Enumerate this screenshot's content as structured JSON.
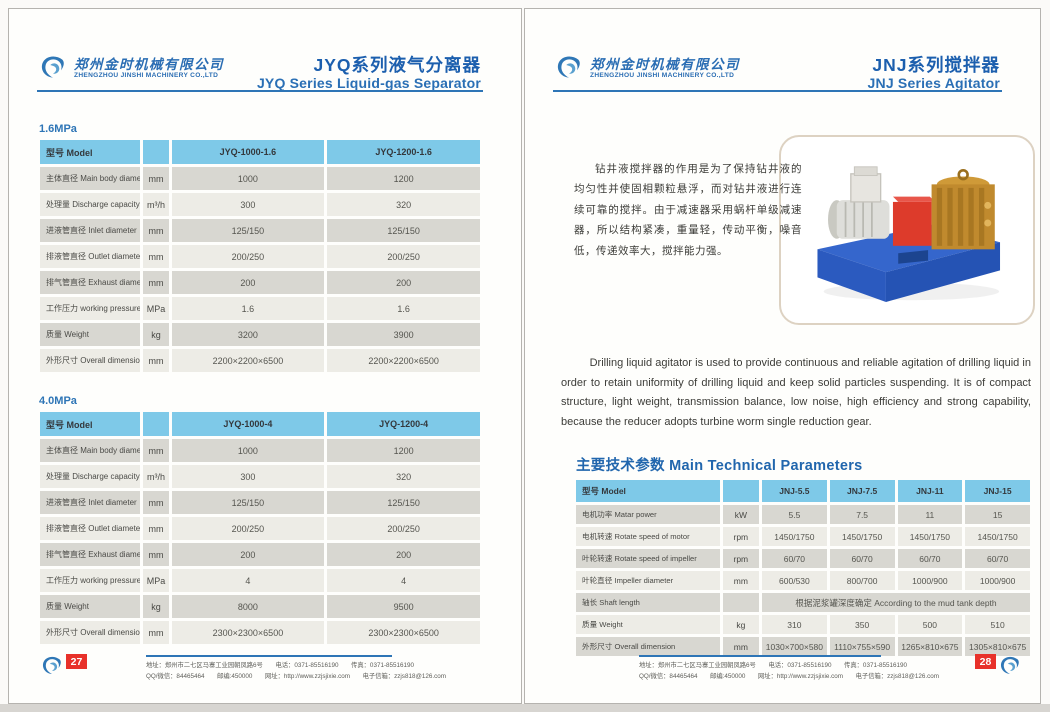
{
  "company": {
    "name_cn": "郑州金时机械有限公司",
    "name_en": "ZHENGZHOU JINSHI MACHINERY CO.,LTD"
  },
  "footer": {
    "line1": "地址：郑州市二七区马寨工业园朝凤路6号　　电话：0371-85516190　　传真：0371-85516190",
    "line2": "QQ/微信：84465464　　邮编:450000　　网址：http://www.zzjsjixie.com　　电子信箱：zzjs818@126.com"
  },
  "left_page": {
    "title_cn": "JYQ系列液气分离器",
    "title_en": "JYQ Series Liquid-gas Separator",
    "page_number": "27",
    "sections": [
      {
        "label": "1.6MPa",
        "table": {
          "header": [
            "型号 Model",
            "",
            "JYQ-1000-1.6",
            "JYQ-1200-1.6"
          ],
          "rows": [
            {
              "label": "主体直径 Main body diameter",
              "unit": "mm",
              "values": [
                "1000",
                "1200"
              ]
            },
            {
              "label": "处理量 Discharge capacity",
              "unit": "m³/h",
              "values": [
                "300",
                "320"
              ]
            },
            {
              "label": "进液管直径 Inlet diameter",
              "unit": "mm",
              "values": [
                "125/150",
                "125/150"
              ]
            },
            {
              "label": "排液管直径 Outlet diameter",
              "unit": "mm",
              "values": [
                "200/250",
                "200/250"
              ]
            },
            {
              "label": "排气管直径 Exhaust diameter",
              "unit": "mm",
              "values": [
                "200",
                "200"
              ]
            },
            {
              "label": "工作压力 working pressure",
              "unit": "MPa",
              "values": [
                "1.6",
                "1.6"
              ]
            },
            {
              "label": "质量 Weight",
              "unit": "kg",
              "values": [
                "3200",
                "3900"
              ]
            },
            {
              "label": "外形尺寸 Overall dimension",
              "unit": "mm",
              "values": [
                "2200×2200×6500",
                "2200×2200×6500"
              ]
            }
          ]
        }
      },
      {
        "label": "4.0MPa",
        "table": {
          "header": [
            "型号 Model",
            "",
            "JYQ-1000-4",
            "JYQ-1200-4"
          ],
          "rows": [
            {
              "label": "主体直径 Main body diameter",
              "unit": "mm",
              "values": [
                "1000",
                "1200"
              ]
            },
            {
              "label": "处理量 Discharge capacity",
              "unit": "m³/h",
              "values": [
                "300",
                "320"
              ]
            },
            {
              "label": "进液管直径 Inlet diameter",
              "unit": "mm",
              "values": [
                "125/150",
                "125/150"
              ]
            },
            {
              "label": "排液管直径 Outlet diameter",
              "unit": "mm",
              "values": [
                "200/250",
                "200/250"
              ]
            },
            {
              "label": "排气管直径 Exhaust diameter",
              "unit": "mm",
              "values": [
                "200",
                "200"
              ]
            },
            {
              "label": "工作压力 working pressure",
              "unit": "MPa",
              "values": [
                "4",
                "4"
              ]
            },
            {
              "label": "质量 Weight",
              "unit": "kg",
              "values": [
                "8000",
                "9500"
              ]
            },
            {
              "label": "外形尺寸 Overall dimension",
              "unit": "mm",
              "values": [
                "2300×2300×6500",
                "2300×2300×6500"
              ]
            }
          ]
        }
      }
    ]
  },
  "right_page": {
    "title_cn": "JNJ系列搅拌器",
    "title_en": "JNJ Series Agitator",
    "page_number": "28",
    "description_cn": "钻井液搅拌器的作用是为了保持钻井液的均匀性并使固相颗粒悬浮，而对钻井液进行连续可靠的搅拌。由于减速器采用蜗杆单级减速器，所以结构紧凑，重量轻，传动平衡，噪音低，传递效率大，搅拌能力强。",
    "description_en": "Drilling liquid agitator is used to provide continuous and reliable agitation of drilling liquid in order to retain uniformity of drilling liquid and keep solid particles suspending. It is of compact structure, light weight, transmission balance, low noise, high efficiency and strong capability, because the reducer adopts turbine worm single reduction gear.",
    "params_heading": "主要技术参数 Main Technical Parameters",
    "table": {
      "header": [
        "型号 Model",
        "",
        "JNJ-5.5",
        "JNJ-7.5",
        "JNJ-11",
        "JNJ-15"
      ],
      "rows": [
        {
          "label": "电机功率 Matar power",
          "unit": "kW",
          "values": [
            "5.5",
            "7.5",
            "11",
            "15"
          ]
        },
        {
          "label": "电机转速 Rotate speed of motor",
          "unit": "rpm",
          "values": [
            "1450/1750",
            "1450/1750",
            "1450/1750",
            "1450/1750"
          ]
        },
        {
          "label": "叶轮转速 Rotate speed of impeller",
          "unit": "rpm",
          "values": [
            "60/70",
            "60/70",
            "60/70",
            "60/70"
          ]
        },
        {
          "label": "叶轮直径 Impeller diameter",
          "unit": "mm",
          "values": [
            "600/530",
            "800/700",
            "1000/900",
            "1000/900"
          ]
        },
        {
          "label": "轴长 Shaft length",
          "unit": "",
          "span_text": "根据泥浆罐深度确定 According to the mud tank depth"
        },
        {
          "label": "质量 Weight",
          "unit": "kg",
          "values": [
            "310",
            "350",
            "500",
            "510"
          ]
        },
        {
          "label": "外形尺寸  Overall dimension",
          "unit": "mm",
          "values": [
            "1030×700×580",
            "1110×755×590",
            "1265×810×675",
            "1305×810×675"
          ]
        }
      ]
    }
  },
  "colors": {
    "accent_blue": "#1c5fae",
    "rule_blue": "#2e75b6",
    "table_header_blue": "#7ec9e8",
    "row_dark": "#d8d7d1",
    "row_light": "#edece6",
    "page_number_red": "#e8312a"
  }
}
